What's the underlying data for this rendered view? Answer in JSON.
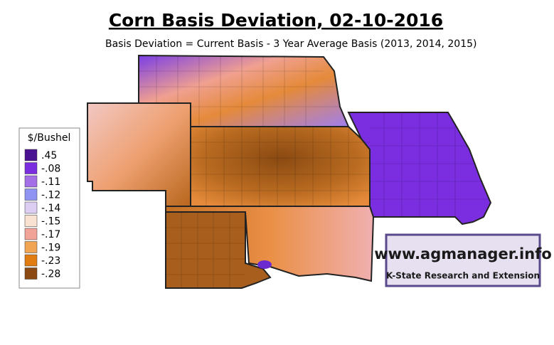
{
  "header": {
    "title": "Corn Basis Deviation, 02-10-2016",
    "subtitle": "Basis Deviation = Current Basis - 3 Year Average Basis (2013, 2014, 2015)"
  },
  "legend": {
    "title": "$/Bushel",
    "items": [
      {
        "label": ".45",
        "color": "#4a1190"
      },
      {
        "label": "-.08",
        "color": "#7a2ee0"
      },
      {
        "label": "-.11",
        "color": "#a36ee6"
      },
      {
        "label": "-.12",
        "color": "#8f94f2"
      },
      {
        "label": "-.14",
        "color": "#dccdf2"
      },
      {
        "label": "-.15",
        "color": "#f9e2d2"
      },
      {
        "label": "-.17",
        "color": "#f1a397"
      },
      {
        "label": "-.19",
        "color": "#f1a452"
      },
      {
        "label": "-.23",
        "color": "#e07c12"
      },
      {
        "label": "-.28",
        "color": "#8a4a12"
      }
    ]
  },
  "watermark": {
    "url": "www.agmanager.info",
    "org": "K-State Research and Extension"
  }
}
